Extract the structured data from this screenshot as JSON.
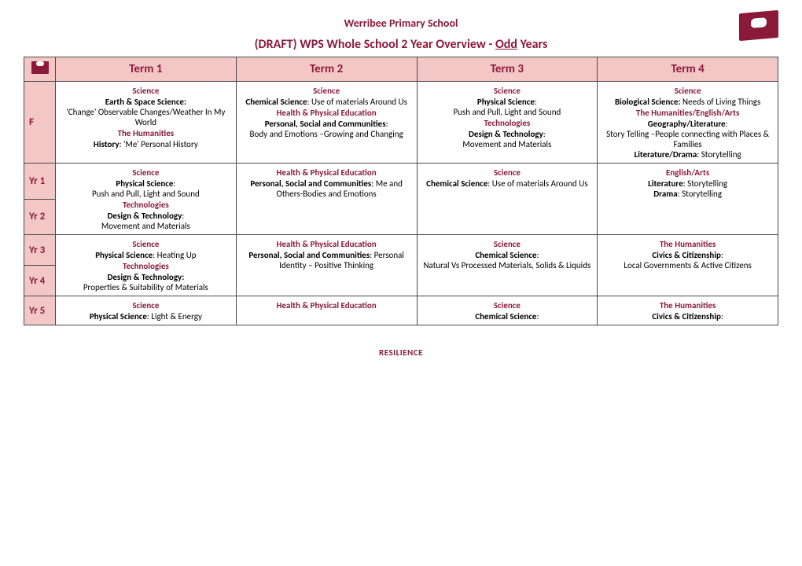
{
  "school_name": "Werribee Primary School",
  "doc_title_prefix": "(DRAFT) WPS Whole School 2 Year Overview - ",
  "doc_title_odd": "Odd",
  "doc_title_suffix": " Years",
  "terms": [
    "Term 1",
    "Term 2",
    "Term 3",
    "Term 4"
  ],
  "footer": "RESILIENCE",
  "colors": {
    "brand": "#8b1a3a",
    "header_bg": "#f4c7c7",
    "border": "#4a4a4a",
    "page_bg": "#ffffff"
  },
  "rows": {
    "F": {
      "labels": [
        "F"
      ],
      "t1": {
        "subj1": "Science",
        "topic1": "Earth & Space Science",
        "desc1": "'Change' Observable Changes/Weather In My World",
        "subj2": "The Humanities",
        "topic2": "History",
        "desc2": ": 'Me' Personal History"
      },
      "t2": {
        "subj1": "Science",
        "topic1": "Chemical Science",
        "desc1": ": Use of materials Around Us",
        "subj2": "Health & Physical Education",
        "topic2": "Personal, Social and Communities",
        "desc2": ":",
        "desc3": "Body and Emotions –Growing and Changing"
      },
      "t3": {
        "subj1": "Science",
        "topic1": "Physical Science",
        "desc1": ":",
        "desc1b": "Push and Pull, Light and Sound",
        "subj2": "Technologies",
        "topic2": "Design & Technology",
        "desc2": ":",
        "desc2b": "Movement and Materials"
      },
      "t4": {
        "subj1": "Science",
        "topic1": "Biological Science:",
        "desc1": " Needs of Living Things",
        "subj2": "The Humanities/English/Arts",
        "topic2": "Geography/Literature",
        "desc2": ":",
        "desc2b": "Story Telling –People connecting with Places & Families",
        "topic3": "Literature/Drama",
        "desc3": ": Storytelling"
      }
    },
    "Yr12": {
      "labels": [
        "Yr 1",
        "Yr 2"
      ],
      "t1": {
        "subj1": "Science",
        "topic1": "Physical Science",
        "desc1": ":",
        "desc1b": "Push and Pull, Light and Sound",
        "subj2": "Technologies",
        "topic2": "Design & Technology",
        "desc2": ":",
        "desc2b": "Movement and Materials"
      },
      "t2": {
        "subj1": "Health & Physical Education",
        "topic1": "Personal, Social and Communities",
        "desc1": ": Me and Others-Bodies and Emotions"
      },
      "t3": {
        "subj1": "Science",
        "topic1": "Chemical Science",
        "desc1": ": Use of materials Around Us"
      },
      "t4": {
        "subj1": "English/Arts",
        "topic1": "Literature",
        "desc1": ": Storytelling",
        "topic2": "Drama",
        "desc2": ": Storytelling"
      }
    },
    "Yr34": {
      "labels": [
        "Yr 3",
        "Yr 4"
      ],
      "t1": {
        "subj1": "Science",
        "topic1": "Physical Science",
        "desc1": ": Heating Up",
        "subj2": "Technologies",
        "topic2": "Design & Technology:",
        "desc2b": "Properties & Suitability of Materials"
      },
      "t2": {
        "subj1": "Health & Physical Education",
        "topic1": "Personal, Social and Communities",
        "desc1": ": Personal Identity – Positive Thinking"
      },
      "t3": {
        "subj1": "Science",
        "topic1": "Chemical Science",
        "desc1": ":",
        "desc1b": "Natural Vs Processed Materials, Solids & Liquids"
      },
      "t4": {
        "subj1": "The Humanities",
        "topic1": "Civics & Citizenship",
        "desc1": ":",
        "desc1b": "Local Governments & Active Citizens"
      }
    },
    "Yr5": {
      "labels": [
        "Yr 5"
      ],
      "t1": {
        "subj1": "Science",
        "topic1": "Physical Science",
        "desc1": ": Light & Energy"
      },
      "t2": {
        "subj1": "Health & Physical Education"
      },
      "t3": {
        "subj1": "Science",
        "topic1": "Chemical Science",
        "desc1": ":"
      },
      "t4": {
        "subj1": "The Humanities",
        "topic1": "Civics & Citizenship",
        "desc1": ":"
      }
    }
  }
}
